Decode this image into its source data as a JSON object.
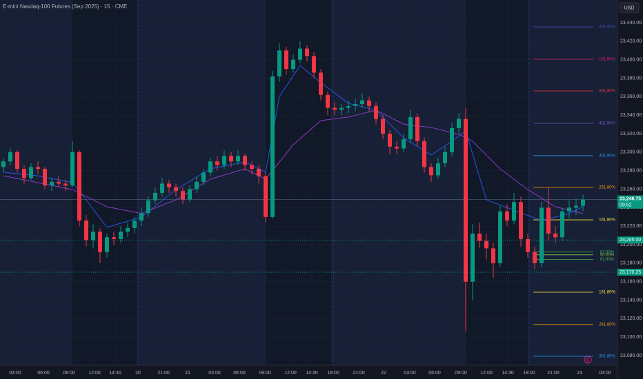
{
  "chart_data": {
    "type": "candlestick",
    "title": "E-mini Nasdaq-100 Futures (Sep 2025) · 15 · CME",
    "currency": "USD",
    "countdown": "09:52",
    "up_color": "#089981",
    "down_color": "#f23645",
    "xlim": [
      -0.5,
      89
    ],
    "ylim": [
      23069.6,
      23464.6
    ],
    "x": [
      0,
      1,
      2,
      3,
      4,
      5,
      6,
      7,
      8,
      9,
      10,
      11,
      12,
      13,
      14,
      15,
      16,
      17,
      18,
      19,
      20,
      21,
      22,
      23,
      24,
      25,
      26,
      27,
      28,
      29,
      30,
      31,
      32,
      33,
      34,
      35,
      36,
      37,
      38,
      39,
      40,
      41,
      42,
      43,
      44,
      45,
      46,
      47,
      48,
      49,
      50,
      51,
      52,
      53,
      54,
      55,
      56,
      57,
      58,
      59,
      60,
      61,
      62,
      63,
      64,
      65,
      66,
      67,
      68,
      69,
      70,
      71,
      72,
      73,
      74,
      75,
      76,
      77,
      78,
      79,
      80,
      81,
      82,
      83,
      84
    ],
    "open": [
      23284,
      23290,
      23300,
      23282,
      23272,
      23284,
      23282,
      23264,
      23268,
      23266,
      23264,
      23300,
      23226,
      23205,
      23214,
      23192,
      23208,
      23206,
      23214,
      23218,
      23226,
      23234,
      23248,
      23256,
      23266,
      23262,
      23258,
      23249,
      23260,
      23268,
      23278,
      23290,
      23286,
      23296,
      23290,
      23296,
      23286,
      23282,
      23274,
      23230,
      23382,
      23410,
      23390,
      23400,
      23412,
      23404,
      23386,
      23362,
      23348,
      23346,
      23348,
      23350,
      23352,
      23356,
      23350,
      23336,
      23320,
      23306,
      23304,
      23314,
      23338,
      23312,
      23284,
      23275,
      23288,
      23300,
      23326,
      23336,
      23160,
      23212,
      23204,
      23196,
      23180,
      23236,
      23226,
      23246,
      23206,
      23192,
      23180,
      23240,
      23212,
      23208,
      23236,
      23240,
      23242
    ],
    "high": [
      23294,
      23304,
      23302,
      23286,
      23288,
      23290,
      23284,
      23272,
      23274,
      23270,
      23312,
      23302,
      23232,
      23222,
      23218,
      23212,
      23214,
      23220,
      23224,
      23230,
      23240,
      23252,
      23262,
      23272,
      23270,
      23266,
      23262,
      23264,
      23274,
      23282,
      23294,
      23296,
      23302,
      23300,
      23302,
      23298,
      23290,
      23286,
      23278,
      23388,
      23418,
      23414,
      23406,
      23420,
      23416,
      23408,
      23390,
      23366,
      23354,
      23352,
      23356,
      23358,
      23364,
      23360,
      23354,
      23340,
      23324,
      23312,
      23320,
      23346,
      23342,
      23316,
      23288,
      23294,
      23306,
      23332,
      23342,
      23348,
      23222,
      23224,
      23212,
      23202,
      23242,
      23244,
      23256,
      23252,
      23212,
      23198,
      23246,
      23262,
      23220,
      23240,
      23248,
      23250,
      23254
    ],
    "low": [
      23278,
      23286,
      23278,
      23266,
      23270,
      23276,
      23260,
      23258,
      23262,
      23258,
      23262,
      23220,
      23198,
      23196,
      23180,
      23186,
      23200,
      23202,
      23208,
      23212,
      23220,
      23230,
      23244,
      23252,
      23256,
      23252,
      23244,
      23246,
      23256,
      23264,
      23274,
      23280,
      23282,
      23284,
      23286,
      23280,
      23276,
      23266,
      23224,
      23228,
      23376,
      23384,
      23386,
      23396,
      23398,
      23380,
      23356,
      23340,
      23340,
      23340,
      23342,
      23344,
      23348,
      23344,
      23330,
      23314,
      23298,
      23298,
      23300,
      23310,
      23306,
      23278,
      23268,
      23272,
      23284,
      23296,
      23320,
      23106,
      23140,
      23196,
      23184,
      23164,
      23176,
      23220,
      23222,
      23198,
      23186,
      23174,
      23176,
      23204,
      23202,
      23204,
      23228,
      23232,
      23236
    ],
    "close": [
      23290,
      23300,
      23282,
      23272,
      23284,
      23282,
      23264,
      23268,
      23266,
      23264,
      23300,
      23226,
      23205,
      23214,
      23192,
      23208,
      23206,
      23214,
      23218,
      23226,
      23234,
      23248,
      23256,
      23266,
      23262,
      23258,
      23249,
      23260,
      23268,
      23278,
      23290,
      23286,
      23296,
      23290,
      23296,
      23286,
      23282,
      23274,
      23230,
      23382,
      23410,
      23390,
      23400,
      23412,
      23404,
      23386,
      23362,
      23348,
      23346,
      23348,
      23350,
      23352,
      23356,
      23350,
      23336,
      23320,
      23306,
      23304,
      23314,
      23338,
      23312,
      23284,
      23275,
      23288,
      23300,
      23326,
      23336,
      23160,
      23212,
      23204,
      23196,
      23180,
      23236,
      23226,
      23246,
      23206,
      23192,
      23180,
      23240,
      23212,
      23208,
      23236,
      23240,
      23242,
      23248.75
    ],
    "moving_averages": [
      {
        "color": "#9c3fe0",
        "x": [
          0,
          5,
          10,
          15,
          20,
          25,
          30,
          35,
          38,
          42,
          46,
          50,
          54,
          58,
          62,
          66,
          68,
          72,
          76,
          80,
          84
        ],
        "values": [
          23274.5,
          23267.1,
          23259.6,
          23241,
          23233.6,
          23248.5,
          23270.8,
          23282,
          23270.8,
          23308.1,
          23334.2,
          23338,
          23345.4,
          23330.4,
          23326.7,
          23319.3,
          23311.8,
          23282,
          23259.6,
          23241,
          23233.6
        ]
      },
      {
        "color": "#2962ff",
        "x": [
          0,
          5,
          10,
          12,
          15,
          20,
          25,
          30,
          35,
          38,
          40,
          43,
          46,
          50,
          54,
          58,
          62,
          65,
          67,
          70,
          74,
          78,
          82,
          84
        ],
        "values": [
          23278.3,
          23274.5,
          23267.1,
          23248.5,
          23218.7,
          23229.8,
          23259.6,
          23282,
          23289.5,
          23278.3,
          23360.3,
          23393.8,
          23375.2,
          23352.8,
          23345.4,
          23315.5,
          23296.9,
          23311.8,
          23323,
          23248.5,
          23237.3,
          23226.1,
          23233.6,
          23241
        ]
      }
    ],
    "last_price": {
      "value": 23248.75,
      "label": "23,248.75"
    },
    "price_levels": [
      {
        "value": 23205,
        "label": "23,205.00"
      },
      {
        "value": 23170.25,
        "label": "23,170.25"
      }
    ],
    "fib_levels": [
      {
        "label": "261.80%",
        "value": 23435.5,
        "color": "#3f51b5"
      },
      {
        "label": "161.80%",
        "value": 23400.5,
        "color": "#e91e63"
      },
      {
        "label": "561.80%",
        "value": 23366.2,
        "color": "#f23645"
      },
      {
        "label": "461.80%",
        "value": 23331.2,
        "color": "#7e57c2"
      },
      {
        "label": "361.80%",
        "value": 23296.2,
        "color": "#2196f3"
      },
      {
        "label": "261.80%",
        "value": 23261.9,
        "color": "#ff9800"
      },
      {
        "label": "161.80%",
        "value": 23226.8,
        "color": "#ffeb3b"
      },
      {
        "label": "61.80%",
        "value": 23192,
        "color": "#4caf50"
      },
      {
        "label": "50.00%",
        "value": 23189,
        "color": "#8bc34a"
      },
      {
        "label": "61.80%",
        "value": 23184,
        "color": "#4caf50"
      },
      {
        "label": "161.80%",
        "value": 23148.6,
        "color": "#ffeb3b"
      },
      {
        "label": "261.80%",
        "value": 23113.6,
        "color": "#ff9800"
      },
      {
        "label": "361.80%",
        "value": 23079.3,
        "color": "#2196f3"
      }
    ],
    "xticks": [
      {
        "value": 1.7,
        "label": "03:00"
      },
      {
        "value": 5.8,
        "label": "06:00"
      },
      {
        "value": 9.5,
        "label": "09:00"
      },
      {
        "value": 13.2,
        "label": "12:00"
      },
      {
        "value": 16.2,
        "label": "14:30"
      },
      {
        "value": 19.5,
        "label": "20"
      },
      {
        "value": 23.2,
        "label": "21:00"
      },
      {
        "value": 26.7,
        "label": "21"
      },
      {
        "value": 30.6,
        "label": "03:00"
      },
      {
        "value": 34.2,
        "label": "06:00"
      },
      {
        "value": 37.9,
        "label": "09:00"
      },
      {
        "value": 41.6,
        "label": "12:00"
      },
      {
        "value": 44.7,
        "label": "14:30"
      },
      {
        "value": 47.8,
        "label": "18:00"
      },
      {
        "value": 51.5,
        "label": "21:00"
      },
      {
        "value": 55.1,
        "label": "22"
      },
      {
        "value": 58.9,
        "label": "03:00"
      },
      {
        "value": 62.5,
        "label": "06:00"
      },
      {
        "value": 66.3,
        "label": "09:00"
      },
      {
        "value": 70,
        "label": "12:00"
      },
      {
        "value": 73.1,
        "label": "14:30"
      },
      {
        "value": 76.2,
        "label": "18:00"
      },
      {
        "value": 79.7,
        "label": "21:00"
      },
      {
        "value": 83.5,
        "label": "23"
      },
      {
        "value": 87.2,
        "label": "03:00"
      }
    ],
    "yticks": [
      {
        "value": 23080,
        "label": "23,080.00"
      },
      {
        "value": 23100,
        "label": "23,100.00"
      },
      {
        "value": 23120,
        "label": "23,120.00"
      },
      {
        "value": 23140,
        "label": "23,140.00"
      },
      {
        "value": 23160,
        "label": "23,160.00"
      },
      {
        "value": 23180,
        "label": "23,180.00"
      },
      {
        "value": 23200,
        "label": "23,200.00"
      },
      {
        "value": 23220,
        "label": "23,220.00"
      },
      {
        "value": 23240,
        "label": "23,240.00"
      },
      {
        "value": 23260,
        "label": "23,260.00"
      },
      {
        "value": 23280,
        "label": "23,280.00"
      },
      {
        "value": 23300,
        "label": "23,300.00"
      },
      {
        "value": 23320,
        "label": "23,320.00"
      },
      {
        "value": 23340,
        "label": "23,340.00"
      },
      {
        "value": 23360,
        "label": "23,360.00"
      },
      {
        "value": 23380,
        "label": "23,380.00"
      },
      {
        "value": 23400,
        "label": "23,400.00"
      },
      {
        "value": 23420,
        "label": "23,420.00"
      },
      {
        "value": 23440,
        "label": "23,440.00"
      }
    ]
  }
}
